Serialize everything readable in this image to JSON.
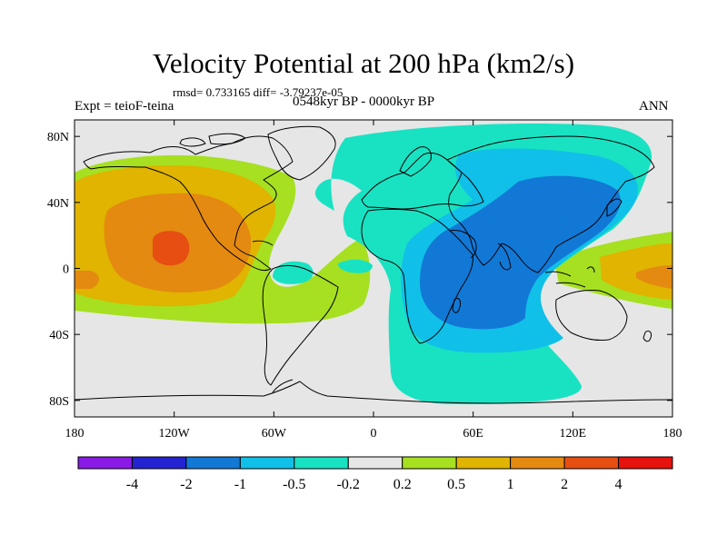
{
  "header": {
    "title": "Velocity Potential at 200 hPa (km2/s)",
    "stats": "rmsd= 0.733165 diff= -3.79237e-05",
    "left_label": "Expt = teioF-teina",
    "center_label": "0548kyr BP - 0000kyr BP",
    "right_label": "ANN"
  },
  "map": {
    "projection": "cylindrical-equidistant",
    "lon_range": [
      -180,
      180
    ],
    "lat_range": [
      -90,
      90
    ],
    "lat_ticks": [
      {
        "value": 80,
        "label": "80N"
      },
      {
        "value": 40,
        "label": "40N"
      },
      {
        "value": 0,
        "label": "0"
      },
      {
        "value": -40,
        "label": "40S"
      },
      {
        "value": -80,
        "label": "80S"
      }
    ],
    "lon_ticks": [
      {
        "value": -180,
        "label": "180"
      },
      {
        "value": -120,
        "label": "120W"
      },
      {
        "value": -60,
        "label": "60W"
      },
      {
        "value": 0,
        "label": "0"
      },
      {
        "value": 60,
        "label": "60E"
      },
      {
        "value": 120,
        "label": "120E"
      },
      {
        "value": 180,
        "label": "180"
      }
    ],
    "features": [
      "positive-anomaly-eastern-pacific",
      "negative-anomaly-africa-asia",
      "coastlines"
    ]
  },
  "colorbar": {
    "labels": [
      "-4",
      "-2",
      "-1",
      "-0.5",
      "-0.2",
      "0.2",
      "0.5",
      "1",
      "2",
      "4"
    ],
    "colors": [
      "#8a1ae6",
      "#2323d2",
      "#1278d6",
      "#10c0e8",
      "#19e2c3",
      "#e6e6e6",
      "#a6e020",
      "#e0b400",
      "#e48a10",
      "#e64e12",
      "#e6120e"
    ]
  },
  "colors": {
    "neutral": "#e6e6e6",
    "coastline": "#000000"
  }
}
